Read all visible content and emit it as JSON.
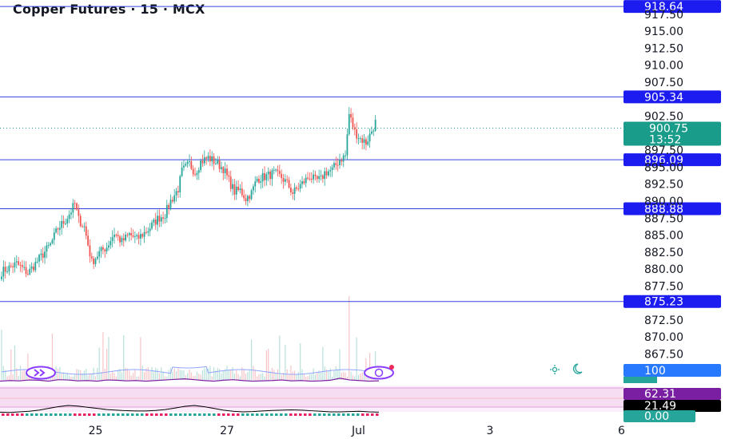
{
  "header": {
    "title": "Copper Futures · 15 · MCX"
  },
  "colors": {
    "up": "#26a69a",
    "down": "#ef5350",
    "hline": "#3344dd",
    "tag": "#1c1cf0",
    "last": "#199c8a",
    "rsi": "#7b1fa2",
    "rsi_band": "#f3d5ee",
    "signal": "#000000"
  },
  "chart_data": [
    {
      "type": "candlestick",
      "title": "Copper Futures · 15 · MCX",
      "ylim": [
        865.8,
        919.6
      ],
      "y_ticks": [
        "917.50",
        "915.00",
        "912.50",
        "910.00",
        "907.50",
        "902.50",
        "897.50",
        "895.00",
        "892.50",
        "890.00",
        "887.50",
        "885.00",
        "882.50",
        "880.00",
        "877.50",
        "872.50",
        "870.00",
        "867.50"
      ],
      "x_ticks": [
        "25",
        "27",
        "Jul",
        "3",
        "6"
      ],
      "x_tick_index": [
        50,
        120,
        190,
        260,
        330
      ],
      "horizontal_lines": [
        "918.64",
        "905.34",
        "896.09",
        "888.88",
        "875.23"
      ],
      "last_price": {
        "value": "900.75",
        "countdown": "13:52"
      },
      "price_path": [
        [
          0,
          879.6
        ],
        [
          8,
          880.8
        ],
        [
          14,
          879.4
        ],
        [
          20,
          881.5
        ],
        [
          26,
          883.6
        ],
        [
          30,
          886.0
        ],
        [
          34,
          887.2
        ],
        [
          37,
          888.6
        ],
        [
          39,
          889.6
        ],
        [
          41,
          887.3
        ],
        [
          44,
          886.2
        ],
        [
          48,
          881.0
        ],
        [
          52,
          882.4
        ],
        [
          56,
          883.3
        ],
        [
          60,
          885.3
        ],
        [
          64,
          884.0
        ],
        [
          68,
          885.1
        ],
        [
          72,
          884.4
        ],
        [
          78,
          885.8
        ],
        [
          83,
          887.4
        ],
        [
          87,
          888.1
        ],
        [
          90,
          890.0
        ],
        [
          94,
          891.8
        ],
        [
          96,
          894.4
        ],
        [
          100,
          895.5
        ],
        [
          103,
          894.2
        ],
        [
          106,
          895.8
        ],
        [
          110,
          896.4
        ],
        [
          114,
          895.7
        ],
        [
          118,
          894.8
        ],
        [
          121,
          893.0
        ],
        [
          124,
          891.4
        ],
        [
          127,
          891.6
        ],
        [
          130,
          890.4
        ],
        [
          133,
          891.2
        ],
        [
          136,
          893.3
        ],
        [
          140,
          893.6
        ],
        [
          145,
          894.1
        ],
        [
          149,
          893.5
        ],
        [
          152,
          892.6
        ],
        [
          155,
          891.2
        ],
        [
          160,
          892.6
        ],
        [
          164,
          893.7
        ],
        [
          167,
          893.0
        ],
        [
          170,
          893.2
        ],
        [
          172,
          894.2
        ],
        [
          176,
          894.6
        ],
        [
          180,
          896.1
        ],
        [
          183,
          896.7
        ],
        [
          185,
          902.8
        ],
        [
          188,
          900.2
        ],
        [
          191,
          899.2
        ],
        [
          194,
          898.6
        ],
        [
          196,
          899.7
        ],
        [
          199,
          901.6
        ]
      ],
      "volume_axis": "100"
    },
    {
      "type": "line",
      "series": [
        {
          "values": [
            62,
            64,
            63,
            66,
            65,
            62,
            67,
            66,
            63,
            64,
            62,
            66,
            65,
            63,
            64,
            62,
            64,
            66,
            68,
            70,
            67,
            64,
            62,
            65,
            67,
            64,
            62,
            63,
            64,
            66,
            63,
            64,
            62,
            63,
            65,
            72,
            66,
            64,
            62,
            63
          ]
        },
        {
          "values": [
            21,
            20,
            22,
            24,
            28,
            34,
            40,
            44,
            42,
            38,
            34,
            30,
            28,
            26,
            25,
            25,
            27,
            30,
            35,
            41,
            44,
            40,
            34,
            28,
            24,
            22,
            23,
            25,
            27,
            28,
            29,
            28,
            26,
            24,
            22,
            22,
            23,
            24,
            22,
            21
          ]
        }
      ],
      "value_tags": [
        "62.31",
        "21.49",
        "0.00"
      ]
    }
  ]
}
